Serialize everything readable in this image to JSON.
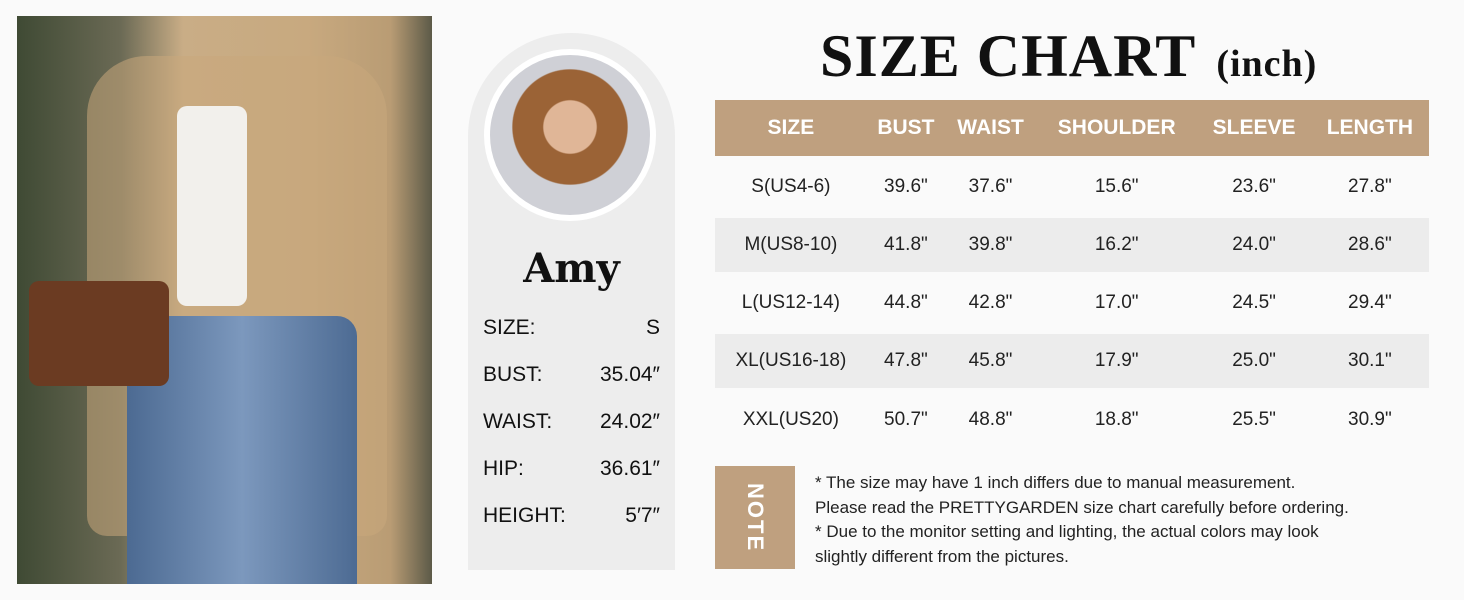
{
  "title": "SIZE CHART",
  "unit": "(inch)",
  "model": {
    "name": "Amy",
    "stats": [
      {
        "label": "SIZE:",
        "value": "S"
      },
      {
        "label": "BUST:",
        "value": "35.04″"
      },
      {
        "label": "WAIST:",
        "value": "24.02″"
      },
      {
        "label": "HIP:",
        "value": "36.61″"
      },
      {
        "label": "HEIGHT:",
        "value": "5′7″"
      }
    ]
  },
  "table": {
    "headers": [
      "SIZE",
      "BUST",
      "WAIST",
      "SHOULDER",
      "SLEEVE",
      "LENGTH"
    ],
    "rows": [
      [
        "S(US4-6)",
        "39.6\"",
        "37.6\"",
        "15.6\"",
        "23.6\"",
        "27.8\""
      ],
      [
        "M(US8-10)",
        "41.8\"",
        "39.8\"",
        "16.2\"",
        "24.0\"",
        "28.6\""
      ],
      [
        "L(US12-14)",
        "44.8\"",
        "42.8\"",
        "17.0\"",
        "24.5\"",
        "29.4\""
      ],
      [
        "XL(US16-18)",
        "47.8\"",
        "45.8\"",
        "17.9\"",
        "25.0\"",
        "30.1\""
      ],
      [
        "XXL(US20)",
        "50.7\"",
        "48.8\"",
        "18.8\"",
        "25.5\"",
        "30.9\""
      ]
    ]
  },
  "note": {
    "label": "NOTE",
    "lines": [
      "* The size may have 1 inch differs due to manual measurement.",
      "Please read the PRETTYGARDEN size chart carefully before ordering.",
      "* Due to the monitor setting and lighting, the actual colors may look",
      "slightly different from the pictures."
    ]
  },
  "colors": {
    "accent": "#bfa07f",
    "stripe": "#ececec"
  }
}
